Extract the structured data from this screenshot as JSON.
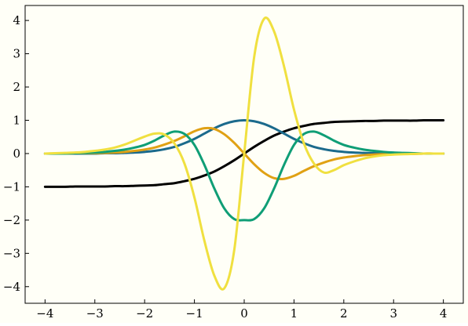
{
  "page": {
    "background": "#fffff7"
  },
  "chart_data": {
    "type": "line",
    "title": "",
    "xlabel": "",
    "ylabel": "",
    "xlim": [
      -4.4,
      4.4
    ],
    "ylim": [
      -4.5,
      4.45
    ],
    "grid": false,
    "legend": "none",
    "xticks": [
      -4,
      -3,
      -2,
      -1,
      0,
      1,
      2,
      3,
      4
    ],
    "xtick_labels": [
      "−4",
      "−3",
      "−2",
      "−1",
      "0",
      "1",
      "2",
      "3",
      "4"
    ],
    "yticks": [
      -4,
      -3,
      -2,
      -1,
      0,
      1,
      2,
      3,
      4
    ],
    "ytick_labels": [
      "−4",
      "−3",
      "−2",
      "−1",
      "0",
      "1",
      "2",
      "3",
      "4"
    ],
    "x": [
      -4.0,
      -3.8,
      -3.6,
      -3.4,
      -3.2,
      -3.0,
      -2.8,
      -2.6,
      -2.4,
      -2.2,
      -2.0,
      -1.8,
      -1.6,
      -1.4,
      -1.2,
      -1.0,
      -0.8,
      -0.6,
      -0.4,
      -0.2,
      0.0,
      0.2,
      0.4,
      0.6,
      0.8,
      1.0,
      1.2,
      1.4,
      1.6,
      1.8,
      2.0,
      2.2,
      2.4,
      2.6,
      2.8,
      3.0,
      3.2,
      3.4,
      3.6,
      3.8,
      4.0
    ],
    "series": [
      {
        "color": "#000000",
        "values": [
          -1.0,
          -1.0,
          -1.0,
          -0.99,
          -0.99,
          -0.99,
          -0.99,
          -0.98,
          -0.98,
          -0.97,
          -0.96,
          -0.95,
          -0.92,
          -0.89,
          -0.83,
          -0.76,
          -0.66,
          -0.54,
          -0.38,
          -0.2,
          0.0,
          0.2,
          0.38,
          0.54,
          0.66,
          0.76,
          0.83,
          0.89,
          0.92,
          0.95,
          0.96,
          0.97,
          0.98,
          0.98,
          0.99,
          0.99,
          0.99,
          0.99,
          1.0,
          1.0,
          1.0
        ]
      },
      {
        "color": "#1b6a8c",
        "values": [
          0.0,
          0.0,
          0.0,
          0.0,
          0.0,
          0.0,
          0.01,
          0.01,
          0.02,
          0.03,
          0.05,
          0.08,
          0.13,
          0.2,
          0.31,
          0.44,
          0.6,
          0.76,
          0.89,
          0.97,
          1.0,
          0.97,
          0.89,
          0.76,
          0.6,
          0.44,
          0.31,
          0.2,
          0.13,
          0.08,
          0.05,
          0.03,
          0.02,
          0.01,
          0.01,
          0.0,
          0.0,
          0.0,
          0.0,
          0.0,
          0.0
        ]
      },
      {
        "color": "#e0a114",
        "values": [
          0.0,
          0.0,
          0.0,
          0.01,
          0.01,
          0.01,
          0.02,
          0.03,
          0.05,
          0.08,
          0.12,
          0.18,
          0.27,
          0.38,
          0.52,
          0.67,
          0.76,
          0.74,
          0.58,
          0.32,
          0.0,
          -0.32,
          -0.58,
          -0.74,
          -0.76,
          -0.67,
          -0.52,
          -0.38,
          -0.27,
          -0.18,
          -0.12,
          -0.08,
          -0.05,
          -0.03,
          -0.02,
          -0.01,
          -0.01,
          -0.01,
          0.0,
          0.0,
          0.0
        ]
      },
      {
        "color": "#0f9e76",
        "values": [
          0.0,
          0.0,
          0.0,
          0.01,
          0.02,
          0.03,
          0.05,
          0.08,
          0.12,
          0.18,
          0.26,
          0.39,
          0.55,
          0.66,
          0.59,
          0.26,
          -0.34,
          -1.05,
          -1.65,
          -1.97,
          -2.0,
          -1.97,
          -1.65,
          -1.05,
          -0.34,
          0.26,
          0.59,
          0.66,
          0.55,
          0.39,
          0.26,
          0.18,
          0.12,
          0.08,
          0.05,
          0.03,
          0.02,
          0.01,
          0.0,
          0.0,
          0.0
        ]
      },
      {
        "color": "#f0e040",
        "values": [
          0.0,
          0.01,
          0.02,
          0.03,
          0.05,
          0.08,
          0.12,
          0.18,
          0.27,
          0.39,
          0.51,
          0.6,
          0.57,
          0.3,
          -0.3,
          -1.32,
          -2.62,
          -3.67,
          -4.05,
          -2.9,
          0.0,
          2.9,
          4.05,
          3.67,
          2.62,
          1.32,
          0.3,
          -0.3,
          -0.57,
          -0.5,
          -0.35,
          -0.24,
          -0.15,
          -0.09,
          -0.05,
          -0.03,
          -0.02,
          -0.01,
          0.0,
          0.0,
          0.0
        ]
      }
    ]
  }
}
